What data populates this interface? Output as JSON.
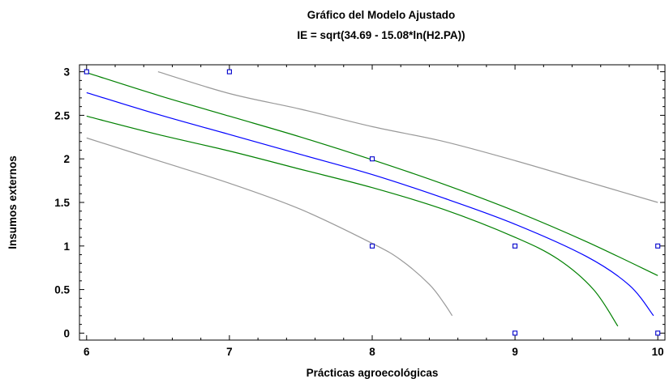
{
  "chart_data": {
    "type": "scatter",
    "title": "Gráfico del Modelo Ajustado",
    "subtitle": "IE = sqrt(34.69 - 15.08*ln(H2.PA))",
    "xlabel": "Prácticas agroecológicas",
    "ylabel": "Insumos externos",
    "xlim": [
      5.95,
      10.05
    ],
    "ylim": [
      -0.08,
      3.08
    ],
    "x_ticks": [
      6,
      7,
      8,
      9,
      10
    ],
    "y_ticks": [
      0,
      0.5,
      1,
      1.5,
      2,
      2.5,
      3
    ],
    "x_tick_labels": [
      "6",
      "7",
      "8",
      "9",
      "10"
    ],
    "y_tick_labels": [
      "0",
      "0.5",
      "1",
      "1.5",
      "2",
      "2.5",
      "3"
    ],
    "grid": false,
    "points": [
      {
        "x": 6,
        "y": 3
      },
      {
        "x": 7,
        "y": 3
      },
      {
        "x": 8,
        "y": 2
      },
      {
        "x": 8,
        "y": 1
      },
      {
        "x": 9,
        "y": 1
      },
      {
        "x": 9,
        "y": 0
      },
      {
        "x": 10,
        "y": 1
      },
      {
        "x": 10,
        "y": 0
      }
    ],
    "series": [
      {
        "role": "fit",
        "color": "#0000ff",
        "x": [
          6,
          6.5,
          7,
          7.5,
          8,
          8.5,
          9,
          9.5,
          9.8,
          9.97
        ],
        "y": [
          2.76,
          2.51,
          2.28,
          2.05,
          1.82,
          1.55,
          1.25,
          0.88,
          0.55,
          0.2
        ]
      },
      {
        "role": "upper-confidence",
        "color": "#008000",
        "x": [
          6,
          6.5,
          7,
          7.5,
          8,
          8.5,
          9,
          9.5,
          10
        ],
        "y": [
          2.99,
          2.73,
          2.49,
          2.25,
          1.99,
          1.71,
          1.4,
          1.05,
          0.66
        ]
      },
      {
        "role": "lower-confidence",
        "color": "#008000",
        "x": [
          6,
          6.5,
          7,
          7.5,
          8,
          8.5,
          9,
          9.3,
          9.55,
          9.72
        ],
        "y": [
          2.49,
          2.28,
          2.09,
          1.88,
          1.67,
          1.42,
          1.1,
          0.85,
          0.5,
          0.08
        ]
      },
      {
        "role": "upper-prediction",
        "color": "#999999",
        "x": [
          6.5,
          7,
          7.5,
          8,
          8.5,
          9,
          9.5,
          10
        ],
        "y": [
          3,
          2.75,
          2.57,
          2.37,
          2.2,
          1.98,
          1.74,
          1.5
        ]
      },
      {
        "role": "lower-prediction",
        "color": "#999999",
        "x": [
          6,
          6.5,
          7,
          7.5,
          8,
          8.2,
          8.4,
          8.5,
          8.56
        ],
        "y": [
          2.24,
          1.98,
          1.72,
          1.42,
          1.03,
          0.84,
          0.56,
          0.35,
          0.2
        ]
      }
    ]
  }
}
